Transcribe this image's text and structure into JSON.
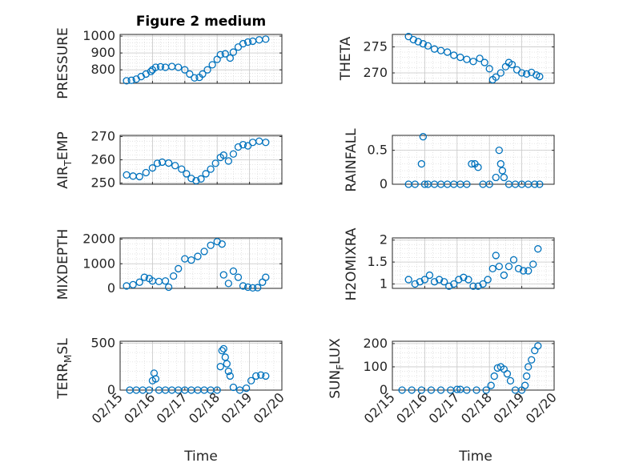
{
  "figure": {
    "title": "Figure 2 medium",
    "marker_color": "#0072BD",
    "grid": true,
    "minor_grid": true
  },
  "chart_data": [
    {
      "id": "pressure",
      "type": "scatter",
      "ylabel": "PRESSURE",
      "ylim": [
        720,
        1010
      ],
      "yticks": [
        800,
        900,
        1000
      ],
      "yticklabels": [
        "800",
        "900",
        "1000"
      ],
      "xlim": [
        0,
        5
      ],
      "xticks": [],
      "x": [
        0.2,
        0.35,
        0.5,
        0.65,
        0.8,
        0.95,
        1.0,
        1.1,
        1.25,
        1.4,
        1.6,
        1.8,
        2.0,
        2.15,
        2.3,
        2.45,
        2.55,
        2.7,
        2.85,
        3.0,
        3.1,
        3.25,
        3.4,
        3.5,
        3.65,
        3.8,
        3.95,
        4.1,
        4.3,
        4.5
      ],
      "y": [
        735,
        738,
        745,
        760,
        775,
        790,
        800,
        815,
        818,
        815,
        820,
        815,
        800,
        775,
        752,
        755,
        775,
        800,
        830,
        862,
        890,
        895,
        870,
        905,
        935,
        955,
        965,
        970,
        978,
        982
      ],
      "series_name": ""
    },
    {
      "id": "theta",
      "type": "scatter",
      "ylabel": "THETA",
      "ylim": [
        268,
        277.4
      ],
      "yticks": [
        270,
        275
      ],
      "yticklabels": [
        "270",
        "275"
      ],
      "xlim": [
        0,
        5
      ],
      "xticks": [],
      "x": [
        0.5,
        0.65,
        0.8,
        0.95,
        1.1,
        1.3,
        1.5,
        1.7,
        1.9,
        2.1,
        2.3,
        2.5,
        2.7,
        2.85,
        3.0,
        3.1,
        3.2,
        3.35,
        3.5,
        3.6,
        3.7,
        3.85,
        4.0,
        4.15,
        4.3,
        4.45,
        4.55
      ],
      "y": [
        277,
        276.4,
        276.0,
        275.6,
        275.2,
        274.6,
        274.3,
        274.0,
        273.4,
        273.0,
        272.6,
        272.2,
        272.8,
        272.0,
        270.8,
        268.7,
        269.2,
        270.0,
        271.2,
        272.0,
        271.6,
        270.6,
        270.0,
        269.8,
        270.1,
        269.6,
        269.3
      ],
      "series_name": ""
    },
    {
      "id": "airtemp",
      "type": "scatter",
      "ylabel_main": "AIR",
      "ylabel_sub": "T",
      "ylabel_rest": "EMP",
      "ylim": [
        249.5,
        270.5
      ],
      "yticks": [
        250,
        260,
        270
      ],
      "yticklabels": [
        "250",
        "260",
        "270"
      ],
      "xlim": [
        0,
        5
      ],
      "xticks": [],
      "x": [
        0.2,
        0.4,
        0.6,
        0.8,
        1.0,
        1.15,
        1.3,
        1.5,
        1.7,
        1.9,
        2.05,
        2.2,
        2.35,
        2.5,
        2.65,
        2.8,
        2.95,
        3.1,
        3.2,
        3.35,
        3.5,
        3.65,
        3.8,
        3.95,
        4.1,
        4.3,
        4.5
      ],
      "y": [
        253.5,
        253,
        252.8,
        254.5,
        256.5,
        258.5,
        259,
        258.6,
        257.5,
        256,
        254,
        252,
        251,
        251.8,
        254,
        256,
        258.5,
        261,
        262,
        259.5,
        262.5,
        265.5,
        266.5,
        266,
        267.5,
        268,
        267.5
      ],
      "series_name": ""
    },
    {
      "id": "rainfall",
      "type": "scatter",
      "ylabel": "RAINFALL",
      "ylim": [
        0,
        0.72
      ],
      "yticks": [
        0,
        0.5
      ],
      "yticklabels": [
        "0",
        "0.5"
      ],
      "xlim": [
        0,
        5
      ],
      "xticks": [],
      "x": [
        0.5,
        0.7,
        0.9,
        0.95,
        1.0,
        1.1,
        1.3,
        1.5,
        1.7,
        1.9,
        2.1,
        2.3,
        2.45,
        2.55,
        2.65,
        2.8,
        3.0,
        3.2,
        3.3,
        3.35,
        3.4,
        3.45,
        3.6,
        3.8,
        4.0,
        4.2,
        4.4,
        4.55
      ],
      "y": [
        0,
        0,
        0.3,
        0.7,
        0,
        0,
        0,
        0,
        0,
        0,
        0,
        0,
        0.3,
        0.3,
        0.25,
        0,
        0,
        0.1,
        0.5,
        0.3,
        0.2,
        0.1,
        0,
        0,
        0,
        0,
        0,
        0
      ],
      "series_name": ""
    },
    {
      "id": "mixdepth",
      "type": "scatter",
      "ylabel": "MIXDEPTH",
      "ylim": [
        0,
        2050
      ],
      "yticks": [
        0,
        1000,
        2000
      ],
      "yticklabels": [
        "0",
        "1000",
        "2000"
      ],
      "xlim": [
        0,
        5
      ],
      "xticks": [],
      "x": [
        0.2,
        0.4,
        0.6,
        0.75,
        0.9,
        1.0,
        1.2,
        1.4,
        1.5,
        1.65,
        1.8,
        2.0,
        2.2,
        2.4,
        2.6,
        2.8,
        3.0,
        3.15,
        3.2,
        3.35,
        3.5,
        3.65,
        3.8,
        3.95,
        4.1,
        4.25,
        4.4,
        4.5
      ],
      "y": [
        100,
        150,
        250,
        450,
        400,
        300,
        280,
        300,
        50,
        500,
        800,
        1200,
        1150,
        1300,
        1500,
        1750,
        1900,
        1800,
        550,
        200,
        700,
        450,
        100,
        50,
        20,
        30,
        250,
        450
      ],
      "series_name": ""
    },
    {
      "id": "h2omixra",
      "type": "scatter",
      "ylabel": "H2OMIXRA",
      "ylim": [
        0.9,
        2.05
      ],
      "yticks": [
        1,
        1.5,
        2
      ],
      "yticklabels": [
        "1",
        "1.5",
        "2"
      ],
      "xlim": [
        0,
        5
      ],
      "xticks": [],
      "x": [
        0.5,
        0.7,
        0.85,
        1.0,
        1.15,
        1.3,
        1.45,
        1.6,
        1.75,
        1.9,
        2.05,
        2.2,
        2.35,
        2.5,
        2.65,
        2.8,
        2.95,
        3.1,
        3.2,
        3.3,
        3.45,
        3.6,
        3.75,
        3.9,
        4.05,
        4.2,
        4.35,
        4.5
      ],
      "y": [
        1.1,
        1.0,
        1.05,
        1.1,
        1.2,
        1.05,
        1.1,
        1.05,
        0.95,
        1.0,
        1.1,
        1.15,
        1.1,
        0.95,
        0.95,
        1.0,
        1.1,
        1.35,
        1.65,
        1.4,
        1.2,
        1.4,
        1.55,
        1.35,
        1.3,
        1.3,
        1.45,
        1.8
      ],
      "series_name": ""
    },
    {
      "id": "terrmsl",
      "type": "scatter",
      "ylabel_main": "TERR",
      "ylabel_sub": "M",
      "ylabel_rest": "SL",
      "ylim": [
        0,
        520
      ],
      "yticks": [
        0,
        500
      ],
      "yticklabels": [
        "0",
        "500"
      ],
      "xlim": [
        0,
        5
      ],
      "xticks": [
        0,
        1,
        2,
        3,
        4,
        5
      ],
      "xticklabels": [
        "02/15",
        "02/16",
        "02/17",
        "02/18",
        "02/19",
        "02/20"
      ],
      "xlabel": "Time",
      "x": [
        0.3,
        0.5,
        0.7,
        0.9,
        1.0,
        1.05,
        1.1,
        1.2,
        1.4,
        1.6,
        1.8,
        2.0,
        2.2,
        2.4,
        2.6,
        2.8,
        3.0,
        3.1,
        3.15,
        3.2,
        3.25,
        3.3,
        3.35,
        3.4,
        3.5,
        3.7,
        3.9,
        4.05,
        4.2,
        4.35,
        4.5
      ],
      "y": [
        0,
        0,
        0,
        0,
        100,
        180,
        120,
        0,
        0,
        0,
        0,
        0,
        0,
        0,
        0,
        0,
        0,
        250,
        420,
        440,
        350,
        280,
        200,
        150,
        30,
        0,
        20,
        100,
        150,
        160,
        150
      ],
      "series_name": ""
    },
    {
      "id": "sunflux",
      "type": "scatter",
      "ylabel_main": "SUN",
      "ylabel_sub": "F",
      "ylabel_rest": "LUX",
      "ylim": [
        0,
        210
      ],
      "yticks": [
        0,
        100,
        200
      ],
      "yticklabels": [
        "0",
        "100",
        "200"
      ],
      "xlim": [
        0,
        5
      ],
      "xticks": [
        0,
        1,
        2,
        3,
        4,
        5
      ],
      "xticklabels": [
        "02/15",
        "02/16",
        "02/17",
        "02/18",
        "02/19",
        "02/20"
      ],
      "xlabel": "Time",
      "x": [
        0.3,
        0.6,
        0.9,
        1.2,
        1.5,
        1.8,
        2.0,
        2.1,
        2.3,
        2.6,
        2.9,
        3.05,
        3.15,
        3.25,
        3.35,
        3.45,
        3.55,
        3.65,
        3.8,
        4.0,
        4.1,
        4.15,
        4.2,
        4.3,
        4.4,
        4.5
      ],
      "y": [
        0,
        0,
        0,
        0,
        0,
        0,
        3,
        3,
        0,
        0,
        0,
        20,
        60,
        95,
        100,
        90,
        70,
        40,
        0,
        0,
        20,
        60,
        100,
        130,
        170,
        190
      ],
      "series_name": ""
    }
  ]
}
